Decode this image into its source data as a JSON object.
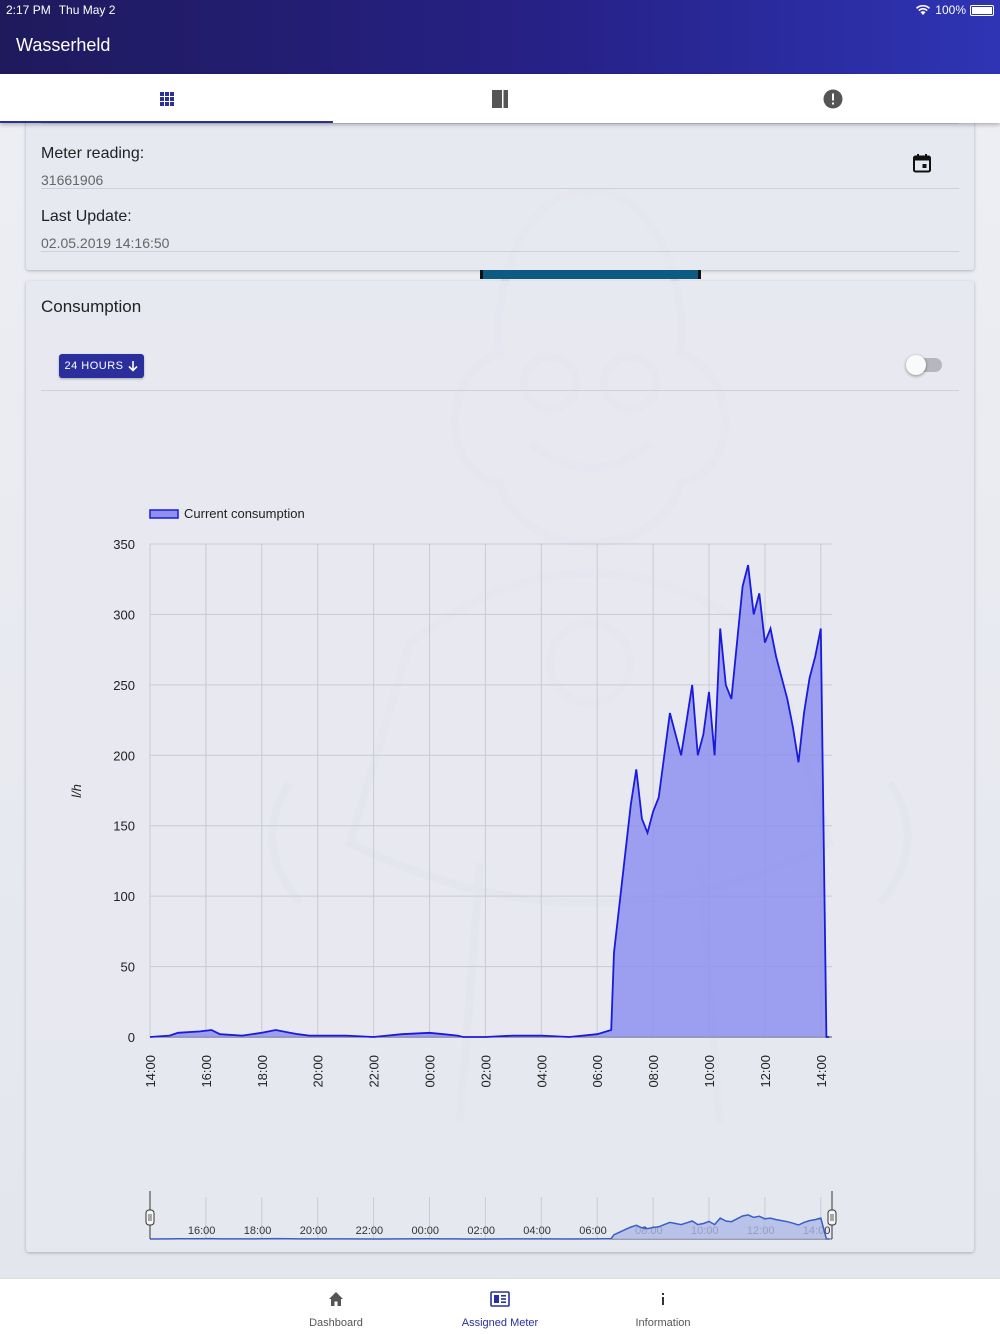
{
  "status_bar": {
    "time": "2:17 PM",
    "date": "Thu May 2",
    "battery": "100%"
  },
  "app": {
    "title": "Wasserheld"
  },
  "tabs": [
    {
      "name": "grid-icon",
      "active": true
    },
    {
      "name": "book-icon",
      "active": false
    },
    {
      "name": "alert-icon",
      "active": false
    }
  ],
  "meter": {
    "reading_label": "Meter reading:",
    "reading_value": "31661906",
    "update_label": "Last Update:",
    "update_value": "02.05.2019 14:16:50"
  },
  "consumption": {
    "title": "Consumption",
    "range_button": "24 HOURS",
    "toggle_on": false
  },
  "colors": {
    "accent": "#2b2f9c",
    "series_line": "#1a1adb",
    "series_fill": "#8e90ee",
    "header_start": "#1f1a5c",
    "header_end": "#2e34b4"
  },
  "chart_data": {
    "type": "area",
    "legend": "Current consumption",
    "legend_position": "top-left",
    "ylabel": "l/h",
    "xlabel": "",
    "ylim": [
      0,
      350
    ],
    "yticks": [
      0,
      50,
      100,
      150,
      200,
      250,
      300,
      350
    ],
    "xticks": [
      "14:00",
      "16:00",
      "18:00",
      "20:00",
      "22:00",
      "00:00",
      "02:00",
      "04:00",
      "06:00",
      "08:00",
      "10:00",
      "12:00",
      "14:00"
    ],
    "grid": true,
    "x_hours": [
      0,
      0.7,
      1.0,
      1.8,
      2.2,
      2.5,
      3.3,
      4.0,
      4.5,
      5.0,
      5.3,
      5.7,
      6.2,
      7.0,
      8.0,
      9.0,
      10.0,
      10.5,
      11.0,
      11.2,
      12.0,
      13.0,
      14.0,
      15.0,
      16.0,
      16.5,
      16.6,
      16.8,
      17.0,
      17.2,
      17.4,
      17.6,
      17.8,
      18.0,
      18.2,
      18.4,
      18.6,
      18.8,
      19.0,
      19.2,
      19.4,
      19.6,
      19.8,
      20.0,
      20.2,
      20.4,
      20.6,
      20.8,
      21.0,
      21.2,
      21.4,
      21.6,
      21.8,
      22.0,
      22.2,
      22.4,
      22.6,
      22.8,
      23.0,
      23.2,
      23.4,
      23.6,
      23.8,
      24.0,
      24.2,
      24.3
    ],
    "values": [
      0,
      1,
      3,
      4,
      5,
      2,
      1,
      3,
      5,
      3,
      2,
      1,
      1,
      1,
      0,
      2,
      3,
      2,
      1,
      0,
      0,
      1,
      1,
      0,
      2,
      5,
      60,
      95,
      130,
      165,
      190,
      155,
      145,
      160,
      170,
      200,
      230,
      215,
      200,
      225,
      250,
      200,
      215,
      245,
      200,
      290,
      250,
      240,
      280,
      320,
      335,
      300,
      315,
      280,
      290,
      270,
      255,
      240,
      220,
      195,
      230,
      255,
      270,
      290,
      0,
      0
    ],
    "navigator_ticks": [
      "16:00",
      "18:00",
      "20:00",
      "22:00",
      "00:00",
      "02:00",
      "04:00",
      "06:00",
      "08:00",
      "10:00",
      "12:00",
      "14:00"
    ]
  },
  "bottom_nav": [
    {
      "label": "Dashboard",
      "active": false
    },
    {
      "label": "Assigned Meter",
      "active": true
    },
    {
      "label": "Information",
      "active": false
    }
  ]
}
